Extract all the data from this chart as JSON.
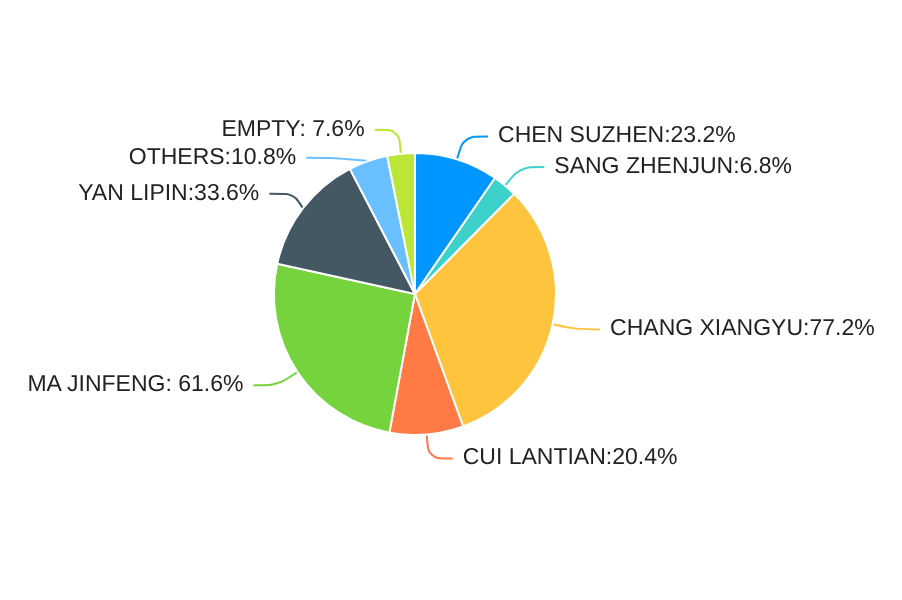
{
  "chart_data": {
    "type": "pie",
    "categories": [
      "CHEN SUZHEN",
      "SANG ZHENJUN",
      "CHANG XIANGYU",
      "CUI LANTIAN",
      "MA JINFENG",
      "YAN LIPIN",
      "OTHERS",
      "EMPTY"
    ],
    "values": [
      23.2,
      6.8,
      77.2,
      20.4,
      61.6,
      33.6,
      10.8,
      7.6
    ],
    "value_labels": [
      "23.2%",
      "6.8%",
      "77.2%",
      "20.4%",
      " 61.6%",
      "33.6%",
      "10.8%",
      " 7.6%"
    ],
    "colors": [
      "#0096ff",
      "#3cd2cb",
      "#ffc43d",
      "#ff7a45",
      "#75d33e",
      "#435863",
      "#6ac0ff",
      "#bae637"
    ],
    "legend": false
  }
}
